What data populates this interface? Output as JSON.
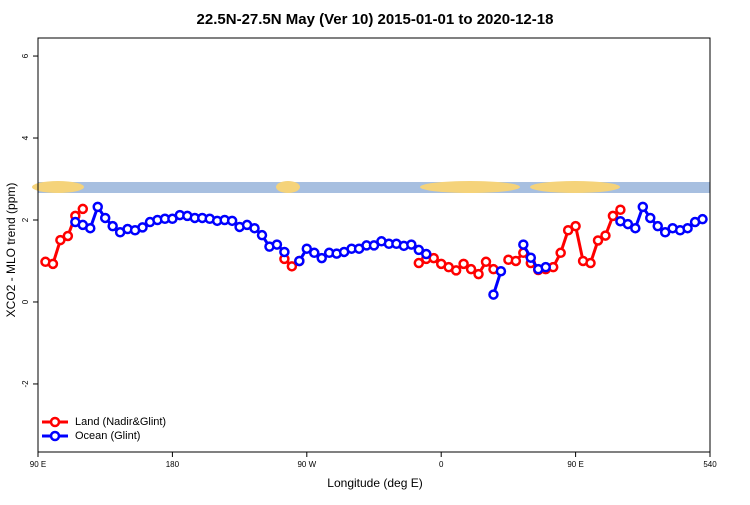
{
  "chart_data": {
    "type": "line",
    "title": "22.5N-27.5N May (Ver 10)   2015-01-01 to 2020-12-18",
    "x_label": "Longitude (deg E)",
    "y_label": "XCO2 - MLO trend (ppm)",
    "legend": "bottom-left",
    "xlim": [
      90,
      540
    ],
    "ylim": [
      -3.66,
      6.44
    ],
    "xticks": [
      {
        "value": 90,
        "label": "90 E"
      },
      180,
      {
        "value": 270,
        "label": "90 W"
      },
      {
        "value": 360,
        "label": "0"
      },
      {
        "value": 450,
        "label": "90 E"
      },
      540
    ],
    "yticks": [
      -2,
      0,
      2,
      4,
      6
    ],
    "x": [
      95,
      100,
      105,
      110,
      115,
      120,
      125,
      130,
      135,
      140,
      145,
      150,
      155,
      160,
      165,
      170,
      175,
      180,
      185,
      190,
      195,
      200,
      205,
      210,
      215,
      220,
      225,
      230,
      235,
      240,
      245,
      250,
      255,
      260,
      265,
      270,
      275,
      280,
      285,
      290,
      295,
      300,
      305,
      310,
      315,
      320,
      325,
      330,
      335,
      340,
      345,
      350,
      355,
      360,
      365,
      370,
      375,
      380,
      385,
      390,
      395,
      400,
      405,
      410,
      415,
      420,
      425,
      430,
      435,
      440,
      445,
      450,
      455,
      460,
      465,
      470,
      475,
      480,
      485,
      490,
      495,
      500,
      505,
      510,
      515,
      520,
      525,
      530,
      535
    ],
    "series": [
      {
        "name": "Land (Nadir&Glint)",
        "color": "#ff0000",
        "values": [
          0.98,
          0.93,
          1.51,
          1.61,
          2.1,
          2.27,
          null,
          null,
          null,
          null,
          null,
          null,
          null,
          null,
          null,
          null,
          null,
          null,
          null,
          null,
          null,
          null,
          null,
          null,
          null,
          null,
          null,
          null,
          null,
          null,
          null,
          null,
          1.05,
          0.87,
          1.0,
          null,
          null,
          null,
          null,
          null,
          null,
          null,
          null,
          null,
          null,
          null,
          null,
          null,
          null,
          null,
          0.95,
          1.05,
          1.07,
          0.93,
          0.85,
          0.77,
          0.93,
          0.8,
          0.68,
          0.98,
          0.8,
          null,
          1.03,
          1.0,
          1.2,
          0.95,
          0.78,
          0.8,
          0.85,
          1.2,
          1.75,
          1.85,
          1.0,
          0.95,
          1.5,
          1.62,
          2.1,
          2.25,
          null,
          null,
          null,
          null,
          null,
          null,
          null,
          null,
          null,
          null,
          null
        ]
      },
      {
        "name": "Ocean (Glint)",
        "color": "#0000ff",
        "values": [
          null,
          null,
          null,
          null,
          1.95,
          1.88,
          1.8,
          2.32,
          2.05,
          1.85,
          1.7,
          1.78,
          1.75,
          1.82,
          1.95,
          2.0,
          2.03,
          2.03,
          2.12,
          2.1,
          2.05,
          2.05,
          2.03,
          1.98,
          2.0,
          1.98,
          1.83,
          1.88,
          1.8,
          1.63,
          1.35,
          1.4,
          1.22,
          null,
          1.0,
          1.3,
          1.2,
          1.07,
          1.2,
          1.18,
          1.22,
          1.3,
          1.3,
          1.38,
          1.38,
          1.48,
          1.42,
          1.42,
          1.37,
          1.4,
          1.27,
          1.17,
          null,
          null,
          null,
          null,
          null,
          null,
          null,
          null,
          0.18,
          0.75,
          null,
          null,
          1.4,
          1.08,
          0.8,
          0.85,
          null,
          null,
          null,
          null,
          null,
          null,
          null,
          null,
          null,
          1.97,
          1.9,
          1.8,
          2.32,
          2.05,
          1.85,
          1.7,
          1.8,
          1.75,
          1.8,
          1.95,
          2.02
        ]
      }
    ]
  }
}
